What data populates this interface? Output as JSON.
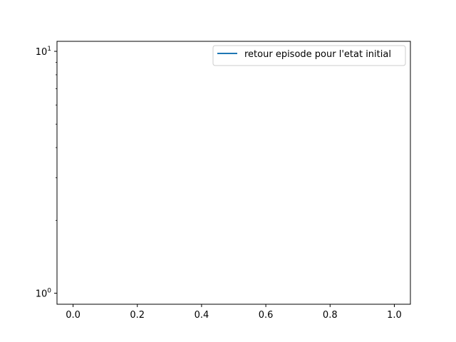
{
  "chart_data": {
    "type": "line",
    "title": "",
    "xlabel": "",
    "ylabel": "",
    "xlim": [
      -0.05,
      1.05
    ],
    "yscale": "log",
    "ylim": [
      0.9,
      11
    ],
    "grid": false,
    "legend_placement": "top-right",
    "x_ticks": [
      {
        "value": 0.0,
        "label": "0.0"
      },
      {
        "value": 0.2,
        "label": "0.2"
      },
      {
        "value": 0.4,
        "label": "0.4"
      },
      {
        "value": 0.6,
        "label": "0.6"
      },
      {
        "value": 0.8,
        "label": "0.8"
      },
      {
        "value": 1.0,
        "label": "1.0"
      }
    ],
    "y_major_ticks": [
      {
        "value": 1,
        "base": "10",
        "exp": "0"
      },
      {
        "value": 10,
        "base": "10",
        "exp": "1"
      }
    ],
    "y_minor_ticks": [
      2,
      3,
      4,
      5,
      6,
      7,
      8,
      9
    ],
    "series": [
      {
        "name": "retour episode pour l'etat initial",
        "color": "#1f77b4",
        "x": [],
        "y": []
      }
    ]
  }
}
